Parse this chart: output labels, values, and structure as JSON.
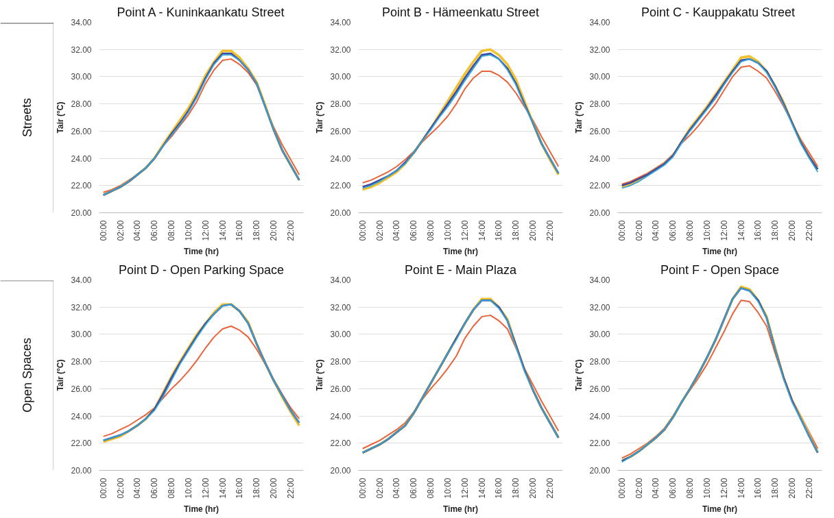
{
  "chart_data": [
    {
      "type": "line",
      "title": "Point A - Kuninkaankatu Street",
      "xlabel": "Time (hr)",
      "ylabel": "Tair (°C)",
      "annotations": [
        "Streets"
      ],
      "categories": [
        "00:00",
        null,
        "02:00",
        null,
        "04:00",
        null,
        "06:00",
        null,
        "08:00",
        null,
        "10:00",
        null,
        "12:00",
        null,
        "14:00",
        null,
        "16:00",
        null,
        "18:00",
        null,
        "20:00",
        null,
        "22:00",
        null
      ],
      "ylim": [
        20,
        34
      ],
      "yticks": [
        {
          "value": 20,
          "label": "20.00"
        },
        {
          "value": 22,
          "label": "22.00"
        },
        {
          "value": 24,
          "label": "24.00"
        },
        {
          "value": 26,
          "label": "26.00"
        },
        {
          "value": 28,
          "label": "28.00"
        },
        {
          "value": 30,
          "label": "30.00"
        },
        {
          "value": 32,
          "label": "32.00"
        },
        {
          "value": 34,
          "label": "34.00"
        }
      ],
      "grid": "y",
      "series": [
        {
          "color": "#e8633a",
          "values": [
            21.5,
            21.7,
            22.0,
            22.4,
            22.8,
            23.3,
            24.0,
            24.9,
            25.6,
            26.4,
            27.2,
            28.2,
            29.5,
            30.5,
            31.2,
            31.3,
            30.9,
            30.3,
            29.4,
            27.8,
            26.3,
            25.0,
            23.9,
            22.8
          ]
        },
        {
          "color": "#f2c12e",
          "values": [
            21.3,
            21.6,
            21.9,
            22.3,
            22.8,
            23.3,
            24.0,
            25.0,
            25.9,
            26.8,
            27.7,
            28.8,
            30.1,
            31.1,
            31.9,
            31.9,
            31.4,
            30.6,
            29.6,
            27.9,
            26.1,
            24.6,
            23.5,
            22.4
          ]
        },
        {
          "color": "#3d4aa0",
          "values": [
            21.3,
            21.6,
            21.9,
            22.3,
            22.8,
            23.3,
            24.0,
            24.9,
            25.8,
            26.6,
            27.5,
            28.6,
            29.9,
            31.0,
            31.7,
            31.7,
            31.2,
            30.5,
            29.5,
            27.8,
            26.1,
            24.6,
            23.5,
            22.4
          ]
        },
        {
          "color": "#35a6d9",
          "values": [
            21.3,
            21.6,
            21.9,
            22.3,
            22.8,
            23.3,
            24.0,
            24.9,
            25.7,
            26.5,
            27.4,
            28.5,
            29.8,
            30.9,
            31.6,
            31.6,
            31.2,
            30.5,
            29.5,
            27.8,
            26.1,
            24.6,
            23.5,
            22.4
          ]
        }
      ]
    },
    {
      "type": "line",
      "title": "Point B - Hämeenkatu Street",
      "xlabel": "Time (hr)",
      "ylabel": "Tair (°C)",
      "categories": [
        "00:00",
        null,
        "02:00",
        null,
        "04:00",
        null,
        "06:00",
        null,
        "08:00",
        null,
        "10:00",
        null,
        "12:00",
        null,
        "14:00",
        null,
        "16:00",
        null,
        "18:00",
        null,
        "20:00",
        null,
        "22:00",
        null
      ],
      "ylim": [
        20,
        34
      ],
      "yticks": [
        {
          "value": 20,
          "label": "20.00"
        },
        {
          "value": 22,
          "label": "22.00"
        },
        {
          "value": 24,
          "label": "24.00"
        },
        {
          "value": 26,
          "label": "26.00"
        },
        {
          "value": 28,
          "label": "28.00"
        },
        {
          "value": 30,
          "label": "30.00"
        },
        {
          "value": 32,
          "label": "32.00"
        },
        {
          "value": 34,
          "label": "34.00"
        }
      ],
      "grid": "y",
      "series": [
        {
          "color": "#e8633a",
          "values": [
            22.2,
            22.4,
            22.7,
            23.0,
            23.4,
            23.9,
            24.5,
            25.2,
            25.8,
            26.4,
            27.1,
            28.0,
            29.1,
            29.9,
            30.4,
            30.4,
            30.1,
            29.6,
            28.8,
            27.8,
            26.8,
            25.6,
            24.5,
            23.4
          ]
        },
        {
          "color": "#f2c12e",
          "values": [
            21.7,
            21.9,
            22.2,
            22.6,
            23.0,
            23.6,
            24.4,
            25.3,
            26.2,
            27.2,
            28.2,
            29.2,
            30.2,
            31.1,
            31.9,
            32.0,
            31.6,
            30.9,
            29.8,
            28.2,
            26.6,
            25.1,
            23.9,
            22.8
          ]
        },
        {
          "color": "#3d4aa0",
          "values": [
            21.9,
            22.1,
            22.4,
            22.7,
            23.1,
            23.7,
            24.4,
            25.3,
            26.2,
            27.1,
            28.0,
            28.9,
            29.9,
            30.8,
            31.6,
            31.7,
            31.3,
            30.6,
            29.5,
            28.0,
            26.6,
            25.1,
            24.0,
            22.9
          ]
        },
        {
          "color": "#35a6d9",
          "values": [
            21.8,
            22.0,
            22.3,
            22.7,
            23.1,
            23.6,
            24.4,
            25.3,
            26.1,
            27.0,
            27.8,
            28.7,
            29.7,
            30.6,
            31.5,
            31.6,
            31.3,
            30.5,
            29.4,
            27.9,
            26.6,
            25.1,
            24.0,
            22.9
          ]
        }
      ]
    },
    {
      "type": "line",
      "title": "Point C -  Kauppakatu Street",
      "xlabel": "Time (hr)",
      "ylabel": "Tair (°C)",
      "categories": [
        "00:00",
        null,
        "02:00",
        null,
        "04:00",
        null,
        "06:00",
        null,
        "08:00",
        null,
        "10:00",
        null,
        "12:00",
        null,
        "14:00",
        null,
        "16:00",
        null,
        "18:00",
        null,
        "20:00",
        null,
        "22:00",
        null
      ],
      "ylim": [
        20,
        34
      ],
      "yticks": [
        {
          "value": 20,
          "label": "20.00"
        },
        {
          "value": 22,
          "label": "22.00"
        },
        {
          "value": 24,
          "label": "24.00"
        },
        {
          "value": 26,
          "label": "26.00"
        },
        {
          "value": 28,
          "label": "28.00"
        },
        {
          "value": 30,
          "label": "30.00"
        },
        {
          "value": 32,
          "label": "32.00"
        },
        {
          "value": 34,
          "label": "34.00"
        }
      ],
      "grid": "y",
      "series": [
        {
          "color": "#e8633a",
          "values": [
            22.1,
            22.3,
            22.6,
            22.9,
            23.3,
            23.7,
            24.3,
            25.1,
            25.7,
            26.4,
            27.2,
            28.0,
            29.0,
            30.0,
            30.7,
            30.8,
            30.4,
            29.9,
            28.9,
            27.8,
            26.6,
            25.4,
            24.4,
            23.4
          ]
        },
        {
          "color": "#f2c12e",
          "values": [
            21.9,
            22.1,
            22.4,
            22.8,
            23.2,
            23.6,
            24.2,
            25.2,
            26.2,
            27.0,
            27.8,
            28.7,
            29.6,
            30.5,
            31.4,
            31.5,
            31.1,
            30.4,
            29.3,
            28.1,
            26.6,
            25.2,
            24.1,
            23.2
          ]
        },
        {
          "color": "#3d4aa0",
          "values": [
            22.0,
            22.2,
            22.5,
            22.8,
            23.2,
            23.6,
            24.2,
            25.2,
            26.1,
            26.9,
            27.7,
            28.6,
            29.5,
            30.4,
            31.2,
            31.3,
            31.0,
            30.4,
            29.3,
            28.0,
            26.6,
            25.2,
            24.1,
            23.2
          ]
        },
        {
          "color": "#35a6d9",
          "values": [
            21.8,
            22.0,
            22.3,
            22.7,
            23.1,
            23.5,
            24.1,
            25.1,
            26.0,
            26.8,
            27.6,
            28.4,
            29.4,
            30.3,
            31.1,
            31.3,
            31.0,
            30.3,
            29.2,
            27.9,
            26.5,
            25.1,
            24.0,
            23.0
          ]
        }
      ]
    },
    {
      "type": "line",
      "title": "Point D - Open Parking Space",
      "xlabel": "Time (hr)",
      "ylabel": "Tair (°C)",
      "annotations": [
        "Open Spaces"
      ],
      "categories": [
        "00:00",
        null,
        "02:00",
        null,
        "04:00",
        null,
        "06:00",
        null,
        "08:00",
        null,
        "10:00",
        null,
        "12:00",
        null,
        "14:00",
        null,
        "16:00",
        null,
        "18:00",
        null,
        "20:00",
        null,
        "22:00",
        null
      ],
      "ylim": [
        20,
        34
      ],
      "yticks": [
        {
          "value": 20,
          "label": "20.00"
        },
        {
          "value": 22,
          "label": "22.00"
        },
        {
          "value": 24,
          "label": "24.00"
        },
        {
          "value": 26,
          "label": "26.00"
        },
        {
          "value": 28,
          "label": "28.00"
        },
        {
          "value": 30,
          "label": "30.00"
        },
        {
          "value": 32,
          "label": "32.00"
        },
        {
          "value": 34,
          "label": "34.00"
        }
      ],
      "grid": "y",
      "series": [
        {
          "color": "#e8633a",
          "values": [
            22.5,
            22.7,
            23.0,
            23.3,
            23.7,
            24.1,
            24.6,
            25.3,
            26.0,
            26.6,
            27.3,
            28.1,
            29.0,
            29.8,
            30.4,
            30.6,
            30.3,
            29.8,
            28.9,
            27.8,
            26.7,
            25.6,
            24.6,
            23.8
          ]
        },
        {
          "color": "#f2c12e",
          "values": [
            22.1,
            22.3,
            22.5,
            22.9,
            23.3,
            23.8,
            24.5,
            25.7,
            26.9,
            28.0,
            29.0,
            30.0,
            30.8,
            31.6,
            32.2,
            32.2,
            31.7,
            30.9,
            29.3,
            27.9,
            26.6,
            25.4,
            24.3,
            23.3
          ]
        },
        {
          "color": "#3d4aa0",
          "values": [
            22.2,
            22.4,
            22.6,
            22.9,
            23.3,
            23.8,
            24.5,
            25.6,
            26.8,
            27.9,
            28.9,
            29.9,
            30.8,
            31.5,
            32.1,
            32.2,
            31.7,
            30.8,
            29.3,
            27.9,
            26.6,
            25.5,
            24.4,
            23.5
          ]
        },
        {
          "color": "#35a6d9",
          "values": [
            22.2,
            22.4,
            22.6,
            22.9,
            23.3,
            23.8,
            24.4,
            25.4,
            26.6,
            27.8,
            28.8,
            29.8,
            30.7,
            31.5,
            32.1,
            32.2,
            31.7,
            30.8,
            29.3,
            27.9,
            26.6,
            25.5,
            24.4,
            23.5
          ]
        }
      ]
    },
    {
      "type": "line",
      "title": "Point E - Main Plaza",
      "xlabel": "Time (hr)",
      "ylabel": "Tair (°C)",
      "categories": [
        "00:00",
        null,
        "02:00",
        null,
        "04:00",
        null,
        "06:00",
        null,
        "08:00",
        null,
        "10:00",
        null,
        "12:00",
        null,
        "14:00",
        null,
        "16:00",
        null,
        "18:00",
        null,
        "20:00",
        null,
        "22:00",
        null
      ],
      "ylim": [
        20,
        34
      ],
      "yticks": [
        {
          "value": 20,
          "label": "20.00"
        },
        {
          "value": 22,
          "label": "22.00"
        },
        {
          "value": 24,
          "label": "24.00"
        },
        {
          "value": 26,
          "label": "26.00"
        },
        {
          "value": 28,
          "label": "28.00"
        },
        {
          "value": 30,
          "label": "30.00"
        },
        {
          "value": 32,
          "label": "32.00"
        },
        {
          "value": 34,
          "label": "34.00"
        }
      ],
      "grid": "y",
      "series": [
        {
          "color": "#e8633a",
          "values": [
            21.6,
            21.9,
            22.2,
            22.6,
            23.0,
            23.5,
            24.3,
            25.2,
            26.0,
            26.7,
            27.5,
            28.4,
            29.7,
            30.6,
            31.3,
            31.4,
            31.0,
            30.4,
            29.0,
            27.5,
            26.3,
            25.1,
            24.0,
            22.9
          ]
        },
        {
          "color": "#f2c12e",
          "values": [
            21.3,
            21.6,
            21.9,
            22.3,
            22.8,
            23.3,
            24.2,
            25.3,
            26.4,
            27.5,
            28.6,
            29.7,
            30.8,
            31.8,
            32.6,
            32.6,
            32.0,
            31.1,
            29.2,
            27.4,
            25.9,
            24.6,
            23.5,
            22.4
          ]
        },
        {
          "color": "#3d4aa0",
          "values": [
            21.3,
            21.6,
            21.9,
            22.3,
            22.8,
            23.3,
            24.2,
            25.3,
            26.4,
            27.5,
            28.6,
            29.7,
            30.8,
            31.8,
            32.5,
            32.5,
            32.0,
            31.0,
            29.2,
            27.4,
            25.9,
            24.6,
            23.5,
            22.4
          ]
        },
        {
          "color": "#35a6d9",
          "values": [
            21.3,
            21.6,
            21.9,
            22.3,
            22.8,
            23.3,
            24.2,
            25.3,
            26.4,
            27.5,
            28.6,
            29.6,
            30.8,
            31.8,
            32.5,
            32.5,
            31.9,
            31.0,
            29.1,
            27.3,
            25.9,
            24.6,
            23.5,
            22.4
          ]
        }
      ]
    },
    {
      "type": "line",
      "title": "Point F - Open Space",
      "xlabel": "Time (hr)",
      "ylabel": "Tair (°C)",
      "categories": [
        "00:00",
        null,
        "02:00",
        null,
        "04:00",
        null,
        "06:00",
        null,
        "08:00",
        null,
        "10:00",
        null,
        "12:00",
        null,
        "14:00",
        null,
        "16:00",
        null,
        "18:00",
        null,
        "20:00",
        null,
        "22:00",
        null
      ],
      "ylim": [
        20,
        34
      ],
      "yticks": [
        {
          "value": 20,
          "label": "20.00"
        },
        {
          "value": 22,
          "label": "22.00"
        },
        {
          "value": 24,
          "label": "24.00"
        },
        {
          "value": 26,
          "label": "26.00"
        },
        {
          "value": 28,
          "label": "28.00"
        },
        {
          "value": 30,
          "label": "30.00"
        },
        {
          "value": 32,
          "label": "32.00"
        },
        {
          "value": 34,
          "label": "34.00"
        }
      ],
      "grid": "y",
      "series": [
        {
          "color": "#e8633a",
          "values": [
            20.9,
            21.2,
            21.6,
            22.0,
            22.5,
            23.1,
            24.0,
            25.0,
            25.9,
            26.8,
            27.8,
            29.0,
            30.2,
            31.5,
            32.5,
            32.4,
            31.6,
            30.6,
            28.6,
            26.7,
            25.2,
            24.0,
            22.8,
            21.6
          ]
        },
        {
          "color": "#f2c12e",
          "values": [
            20.7,
            21.0,
            21.4,
            21.9,
            22.4,
            23.0,
            23.9,
            25.0,
            26.0,
            27.1,
            28.3,
            29.6,
            31.1,
            32.6,
            33.5,
            33.3,
            32.5,
            31.3,
            29.0,
            26.8,
            25.1,
            23.9,
            22.6,
            21.3
          ]
        },
        {
          "color": "#3d4aa0",
          "values": [
            20.7,
            21.0,
            21.4,
            21.9,
            22.4,
            23.0,
            23.9,
            25.0,
            26.0,
            27.1,
            28.3,
            29.6,
            31.1,
            32.6,
            33.4,
            33.2,
            32.5,
            31.2,
            28.9,
            26.8,
            25.1,
            23.8,
            22.5,
            21.3
          ]
        },
        {
          "color": "#35a6d9",
          "values": [
            20.6,
            21.0,
            21.4,
            21.9,
            22.4,
            23.0,
            23.9,
            25.0,
            26.0,
            27.1,
            28.3,
            29.6,
            31.1,
            32.6,
            33.4,
            33.2,
            32.4,
            31.2,
            28.9,
            26.7,
            25.0,
            23.8,
            22.5,
            21.3
          ]
        }
      ]
    }
  ]
}
